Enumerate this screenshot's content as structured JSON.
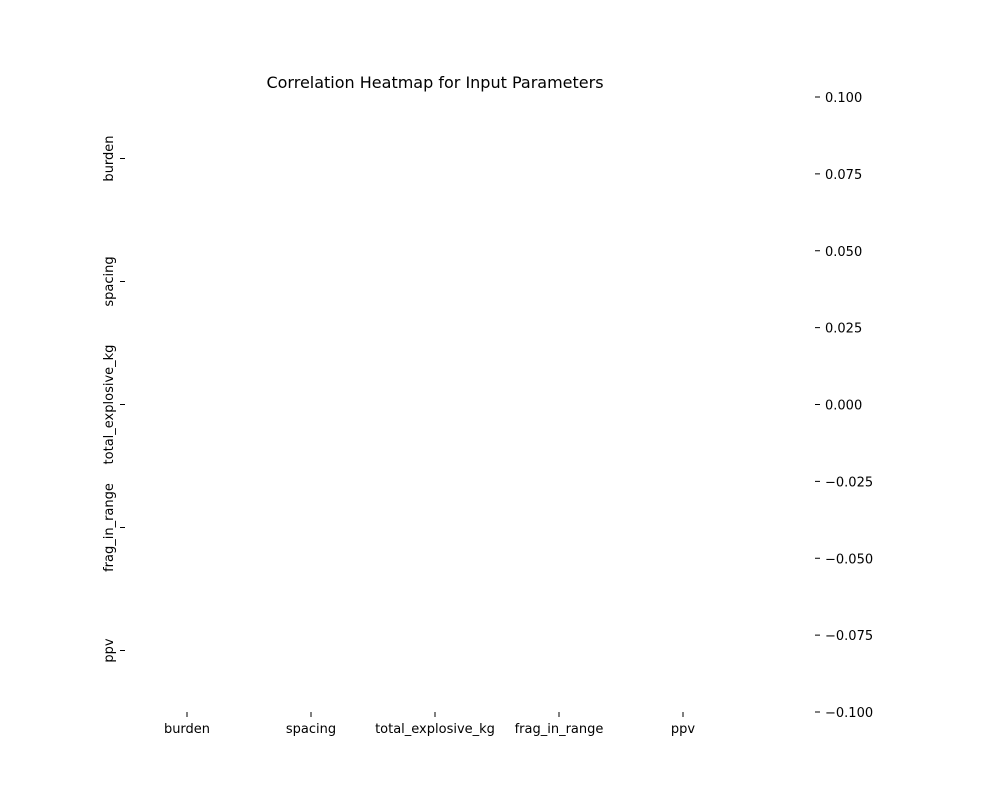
{
  "chart_data": {
    "type": "heatmap",
    "title": "Correlation Heatmap for Input Parameters",
    "x_categories": [
      "burden",
      "spacing",
      "total_explosive_kg",
      "frag_in_range",
      "ppv"
    ],
    "y_categories": [
      "burden",
      "spacing",
      "total_explosive_kg",
      "frag_in_range",
      "ppv"
    ],
    "values": [],
    "colorbar": {
      "ticks": [
        "0.100",
        "0.075",
        "0.050",
        "0.025",
        "0.000",
        "−0.025",
        "−0.050",
        "−0.075",
        "−0.100"
      ],
      "range": [
        -0.1,
        0.1
      ]
    }
  }
}
